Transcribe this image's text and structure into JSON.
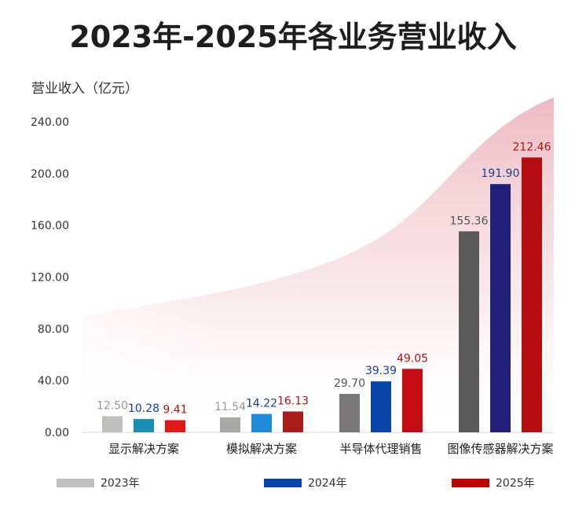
{
  "title": "2023年-2025年各业务营业收入",
  "chart_data": {
    "type": "bar",
    "title": "2023年-2025年各业务营业收入",
    "ylabel": "营业收入（亿元）",
    "xlabel": "",
    "ylim": [
      0,
      240
    ],
    "yticks": [
      "0.00",
      "40.00",
      "80.00",
      "120.00",
      "160.00",
      "200.00",
      "240.00"
    ],
    "categories": [
      "显示解决方案",
      "模拟解决方案",
      "半导体代理销售",
      "图像传感器解决方案"
    ],
    "series": [
      {
        "name": "2023年",
        "values": [
          12.5,
          11.54,
          29.7,
          155.36
        ],
        "labels": [
          "12.50",
          "11.54",
          "29.70",
          "155.36"
        ],
        "bar_colors": [
          "#c1bebe",
          "#aba8a8",
          "#7a7878",
          "#5a5a5a"
        ],
        "label_colors": [
          "#9a9a9a",
          "#9a9a9a",
          "#555555",
          "#555555"
        ]
      },
      {
        "name": "2024年",
        "values": [
          10.28,
          14.22,
          39.39,
          191.9
        ],
        "labels": [
          "10.28",
          "14.22",
          "39.39",
          "191.90"
        ],
        "bar_colors": [
          "#1b8fb2",
          "#1f8ad6",
          "#0a46a8",
          "#1f1f7a"
        ],
        "label_colors": [
          "#1a3f8f",
          "#1a3f8f",
          "#1a3f8f",
          "#1a3f8f"
        ]
      },
      {
        "name": "2025年",
        "values": [
          9.41,
          16.13,
          49.05,
          212.46
        ],
        "labels": [
          "9.41",
          "16.13",
          "49.05",
          "212.46"
        ],
        "bar_colors": [
          "#e01818",
          "#a81c1c",
          "#c40c12",
          "#b50e10"
        ],
        "label_colors": [
          "#b01515",
          "#b01515",
          "#b01515",
          "#b01515"
        ]
      }
    ],
    "legend": [
      {
        "name": "2023年",
        "color": "#c1bebe"
      },
      {
        "name": "2024年",
        "color": "#0a46a8"
      },
      {
        "name": "2025年",
        "color": "#c00000"
      }
    ],
    "background_band_color": "#e8a3ae"
  }
}
